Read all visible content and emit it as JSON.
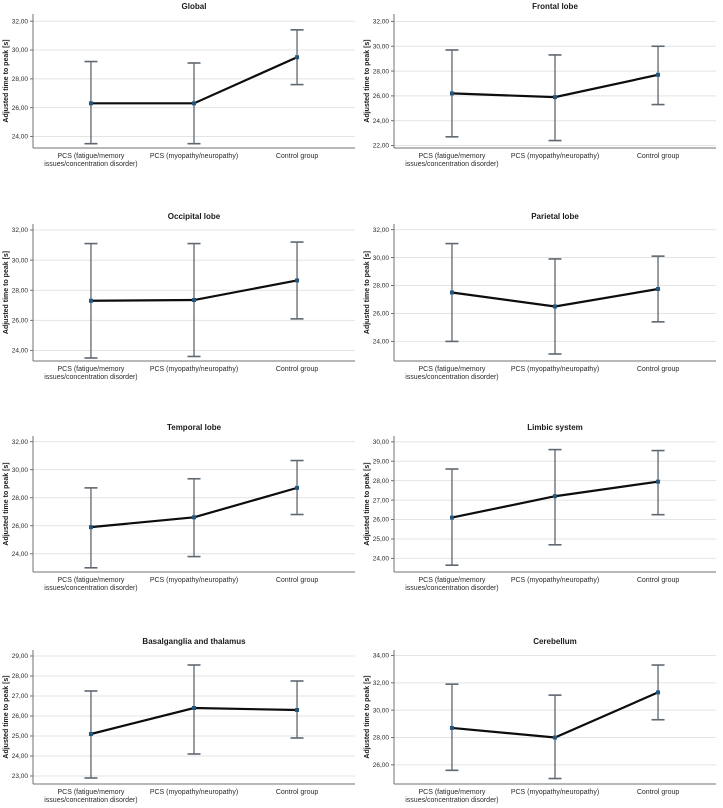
{
  "figure": {
    "description": "Eight point-and-error-bar charts of adjusted time to peak by group and brain region",
    "colors": {
      "marker": "#25567b",
      "series_line": "#0d0d0d",
      "error_bar": "#5f6770",
      "gridline": "#e4e4e4",
      "axis": "#707070",
      "text": "#1a1a1a",
      "background": "#ffffff"
    }
  },
  "chart_data": {
    "type": "line",
    "error_bars": true,
    "shared": {
      "ylabel": "Adjusted time to peak [s]",
      "categories": [
        "PCS (fatigue/memory issues/concentration disorder)",
        "PCS (myopathy/neuropathy)",
        "Control group"
      ],
      "category_label_lines": [
        [
          "PCS (fatigue/memory",
          "issues/concentration disorder)"
        ],
        [
          "PCS (myopathy/neuropathy)"
        ],
        [
          "Control group"
        ]
      ],
      "tick_decimal_separator": "comma",
      "grid": "horizontal",
      "legend": "none"
    },
    "panels": [
      {
        "title": "Global",
        "yticks": [
          24,
          26,
          28,
          30,
          32
        ],
        "ylim": [
          23.2,
          32.5
        ],
        "means": [
          26.3,
          26.3,
          29.5
        ],
        "ci_low": [
          23.5,
          23.5,
          27.6
        ],
        "ci_high": [
          29.2,
          29.1,
          31.4
        ]
      },
      {
        "title": "Frontal lobe",
        "yticks": [
          22,
          24,
          26,
          28,
          30,
          32
        ],
        "ylim": [
          21.8,
          32.6
        ],
        "means": [
          26.2,
          25.9,
          27.7
        ],
        "ci_low": [
          22.7,
          22.4,
          25.3
        ],
        "ci_high": [
          29.7,
          29.3,
          30.0
        ]
      },
      {
        "title": "Occipital lobe",
        "yticks": [
          24,
          26,
          28,
          30,
          32
        ],
        "ylim": [
          23.3,
          32.4
        ],
        "means": [
          27.3,
          27.35,
          28.65
        ],
        "ci_low": [
          23.5,
          23.6,
          26.1
        ],
        "ci_high": [
          31.1,
          31.1,
          31.2
        ]
      },
      {
        "title": "Parietal lobe",
        "yticks": [
          24,
          26,
          28,
          30,
          32
        ],
        "ylim": [
          22.6,
          32.4
        ],
        "means": [
          27.5,
          26.5,
          27.75
        ],
        "ci_low": [
          24.0,
          23.1,
          25.4
        ],
        "ci_high": [
          31.0,
          29.9,
          30.1
        ]
      },
      {
        "title": "Temporal lobe",
        "yticks": [
          24,
          26,
          28,
          30,
          32
        ],
        "ylim": [
          22.7,
          32.4
        ],
        "means": [
          25.9,
          26.6,
          28.7
        ],
        "ci_low": [
          23.0,
          23.8,
          26.8
        ],
        "ci_high": [
          28.7,
          29.35,
          30.65
        ]
      },
      {
        "title": "Limbic system",
        "yticks": [
          24,
          25,
          26,
          27,
          28,
          29,
          30
        ],
        "ylim": [
          23.3,
          30.3
        ],
        "means": [
          26.1,
          27.2,
          27.95
        ],
        "ci_low": [
          23.65,
          24.7,
          26.25
        ],
        "ci_high": [
          28.6,
          29.6,
          29.55
        ]
      },
      {
        "title": "Basalganglia and thalamus",
        "yticks": [
          23,
          24,
          25,
          26,
          27,
          28,
          29
        ],
        "ylim": [
          22.6,
          29.3
        ],
        "means": [
          25.1,
          26.4,
          26.3
        ],
        "ci_low": [
          22.9,
          24.1,
          24.9
        ],
        "ci_high": [
          27.25,
          28.55,
          27.75
        ]
      },
      {
        "title": "Cerebellum",
        "yticks": [
          26,
          28,
          30,
          32,
          34
        ],
        "ylim": [
          24.6,
          34.4
        ],
        "means": [
          28.7,
          28.0,
          31.3
        ],
        "ci_low": [
          25.6,
          25.0,
          29.3
        ],
        "ci_high": [
          31.9,
          31.1,
          33.3
        ]
      }
    ]
  }
}
